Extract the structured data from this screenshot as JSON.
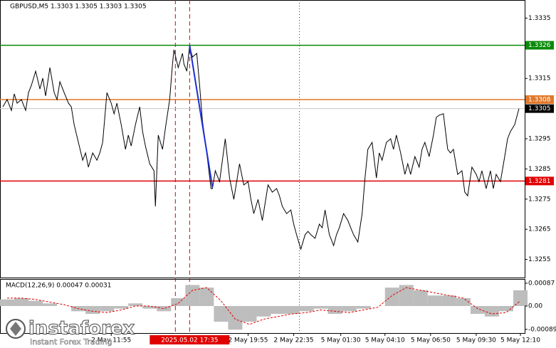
{
  "chart_data": {
    "type": "line",
    "title": "GBPUSD,M5  1.3303 1.3305 1.3303 1.3305",
    "x": [
      2,
      5,
      8,
      10,
      12,
      15,
      18,
      20,
      22,
      25,
      28,
      30,
      32,
      35,
      38,
      40,
      42,
      45,
      48,
      50,
      52,
      55,
      58,
      60,
      62,
      65,
      68,
      70,
      72,
      75,
      78,
      80,
      82,
      85,
      88,
      90,
      92,
      95,
      98,
      100,
      102,
      105,
      108,
      109,
      111,
      114,
      116,
      119,
      121,
      122,
      125,
      128,
      129,
      131,
      133,
      135,
      138,
      140,
      142,
      145,
      148,
      149,
      151,
      154,
      156,
      158,
      161,
      164,
      166,
      168,
      171,
      174,
      176,
      178,
      181,
      184,
      186,
      188,
      191,
      194,
      196,
      198,
      201,
      204,
      206,
      208,
      211,
      214,
      216,
      218,
      221,
      224,
      226,
      228,
      231,
      234,
      236,
      238,
      241,
      244,
      246,
      248,
      251,
      254,
      256,
      258,
      261,
      264,
      266,
      268,
      271,
      274,
      276,
      278,
      281,
      284,
      286,
      288,
      291,
      294,
      296,
      298,
      301,
      304,
      306,
      308,
      311,
      314,
      316,
      318,
      321,
      324,
      326,
      328,
      331,
      334,
      336,
      338,
      341,
      344,
      346,
      348,
      351,
      354,
      356,
      358,
      361,
      364
    ],
    "values": [
      1.33056,
      1.3308,
      1.33044,
      1.33099,
      1.33068,
      1.3308,
      1.33044,
      1.33103,
      1.33127,
      1.33174,
      1.33115,
      1.33151,
      1.33092,
      1.33186,
      1.33103,
      1.3308,
      1.33139,
      1.33103,
      1.33068,
      1.33056,
      1.32997,
      1.32938,
      1.32879,
      1.32903,
      1.32856,
      1.32903,
      1.32879,
      1.32903,
      1.32938,
      1.33103,
      1.33068,
      1.33033,
      1.33068,
      1.32997,
      1.32915,
      1.32962,
      1.32926,
      1.32997,
      1.33056,
      1.32974,
      1.32926,
      1.32867,
      1.32844,
      1.32726,
      1.32962,
      1.32915,
      1.32985,
      1.3308,
      1.33198,
      1.33245,
      1.33186,
      1.33233,
      1.33198,
      1.33174,
      1.33257,
      1.33221,
      1.33233,
      1.33127,
      1.33009,
      1.32903,
      1.32785,
      1.32785,
      1.32844,
      1.32808,
      1.32879,
      1.3295,
      1.3282,
      1.32749,
      1.32808,
      1.32867,
      1.32797,
      1.32808,
      1.32749,
      1.32702,
      1.32749,
      1.32679,
      1.32738,
      1.32797,
      1.32773,
      1.32785,
      1.32761,
      1.32726,
      1.32702,
      1.32714,
      1.32667,
      1.32632,
      1.32584,
      1.32632,
      1.32643,
      1.32632,
      1.3262,
      1.32667,
      1.32655,
      1.32714,
      1.32632,
      1.32596,
      1.32632,
      1.32655,
      1.32702,
      1.32679,
      1.32655,
      1.32632,
      1.32608,
      1.32702,
      1.3282,
      1.32915,
      1.32938,
      1.3282,
      1.32903,
      1.32879,
      1.32938,
      1.3295,
      1.32915,
      1.32962,
      1.32903,
      1.32832,
      1.32867,
      1.32832,
      1.32891,
      1.32856,
      1.32915,
      1.32938,
      1.32891,
      1.32962,
      1.33021,
      1.33028,
      1.33033,
      1.32915,
      1.32903,
      1.32915,
      1.32832,
      1.32844,
      1.32773,
      1.32761,
      1.32856,
      1.32832,
      1.32808,
      1.32844,
      1.32785,
      1.32844,
      1.32785,
      1.32832,
      1.32808,
      1.32891,
      1.3295,
      1.32974,
      1.32997,
      1.3305
    ],
    "color": "#000000",
    "xlim": [
      0,
      368
    ],
    "xticks": [
      {
        "value": 78,
        "label": "2 May 11:55"
      },
      {
        "value": 174,
        "label": "2 May 19:55"
      },
      {
        "value": 206,
        "label": "2 May 22:35"
      },
      {
        "value": 239,
        "label": "5 May 01:30"
      },
      {
        "value": 270,
        "label": "5 May 04:10"
      },
      {
        "value": 302,
        "label": "5 May 06:50"
      },
      {
        "value": 334,
        "label": "5 May 09:30"
      },
      {
        "value": 365,
        "label": "5 May 12:10"
      }
    ],
    "ylim": [
      1.3249,
      1.3341
    ],
    "yticks": [
      1.3335,
      1.3315,
      1.3295,
      1.3285,
      1.3275,
      1.3265,
      1.3255
    ],
    "levels": [
      {
        "value": 1.3326,
        "color": "#0a8a0a"
      },
      {
        "value": 1.3308,
        "color": "#e0782a"
      },
      {
        "value": 1.3281,
        "color": "#e00000"
      },
      {
        "value": 1.3305,
        "color": "#000000"
      }
    ],
    "trendline": {
      "x": [
        133,
        149
      ],
      "values": [
        1.3326,
        1.3279
      ],
      "color": "#1a2fd6"
    },
    "vlines": [
      {
        "x": 123,
        "color": "#e00000",
        "style": "dashed"
      },
      {
        "x": 133,
        "color": "#e00000",
        "style": "dashed",
        "label": "2025.05.02 17:35"
      },
      {
        "x": 210,
        "color": "#333333",
        "style": "dotted"
      }
    ],
    "macd": {
      "title": "MACD(12,26,9) 0.00047 0.00031",
      "x": [
        0,
        10,
        20,
        30,
        40,
        50,
        60,
        70,
        80,
        90,
        100,
        110,
        120,
        130,
        140,
        150,
        160,
        170,
        180,
        190,
        200,
        210,
        220,
        230,
        240,
        250,
        260,
        270,
        280,
        290,
        300,
        310,
        320,
        330,
        340,
        350,
        360
      ],
      "histogram": [
        0.00025,
        0.0003,
        0.0002,
        0.0001,
        0.0,
        -0.0002,
        -0.0003,
        -0.0002,
        -0.0001,
        0.0001,
        -0.0001,
        -0.0002,
        0.0003,
        0.0008,
        0.0007,
        -0.0006,
        -0.0009,
        -0.0006,
        -0.0004,
        -0.0003,
        -0.0003,
        -0.0002,
        -0.0001,
        -0.0003,
        -0.0002,
        -0.0001,
        0.0,
        0.0007,
        0.0008,
        0.0006,
        0.0004,
        0.0004,
        0.0003,
        -0.0003,
        -0.0004,
        -0.0002,
        0.0006
      ],
      "signal": [
        0.0003,
        0.0003,
        0.00025,
        0.00015,
        5e-05,
        -0.0001,
        -0.0002,
        -0.00025,
        -0.00015,
        0.0,
        0.0,
        -0.0001,
        0.0001,
        0.0006,
        0.0007,
        0.0002,
        -0.0005,
        -0.0007,
        -0.0005,
        -0.0004,
        -0.0003,
        -0.00025,
        -0.00015,
        -0.0002,
        -0.00025,
        -0.00015,
        -5e-05,
        0.0004,
        0.0007,
        0.0006,
        0.0005,
        0.0004,
        0.0003,
        -0.0001,
        -0.0003,
        -0.00025,
        0.0002
      ],
      "histogram_color": "#bdbdbd",
      "signal_color": "#e00000",
      "ylim": [
        -0.00103,
        0.00103
      ],
      "yticks": [
        0.00087,
        {
          "value": 0,
          "label": "0.00"
        },
        -0.00089
      ]
    },
    "watermark": {
      "brand": "instaforex",
      "tagline": "Instant Forex Trading"
    }
  }
}
